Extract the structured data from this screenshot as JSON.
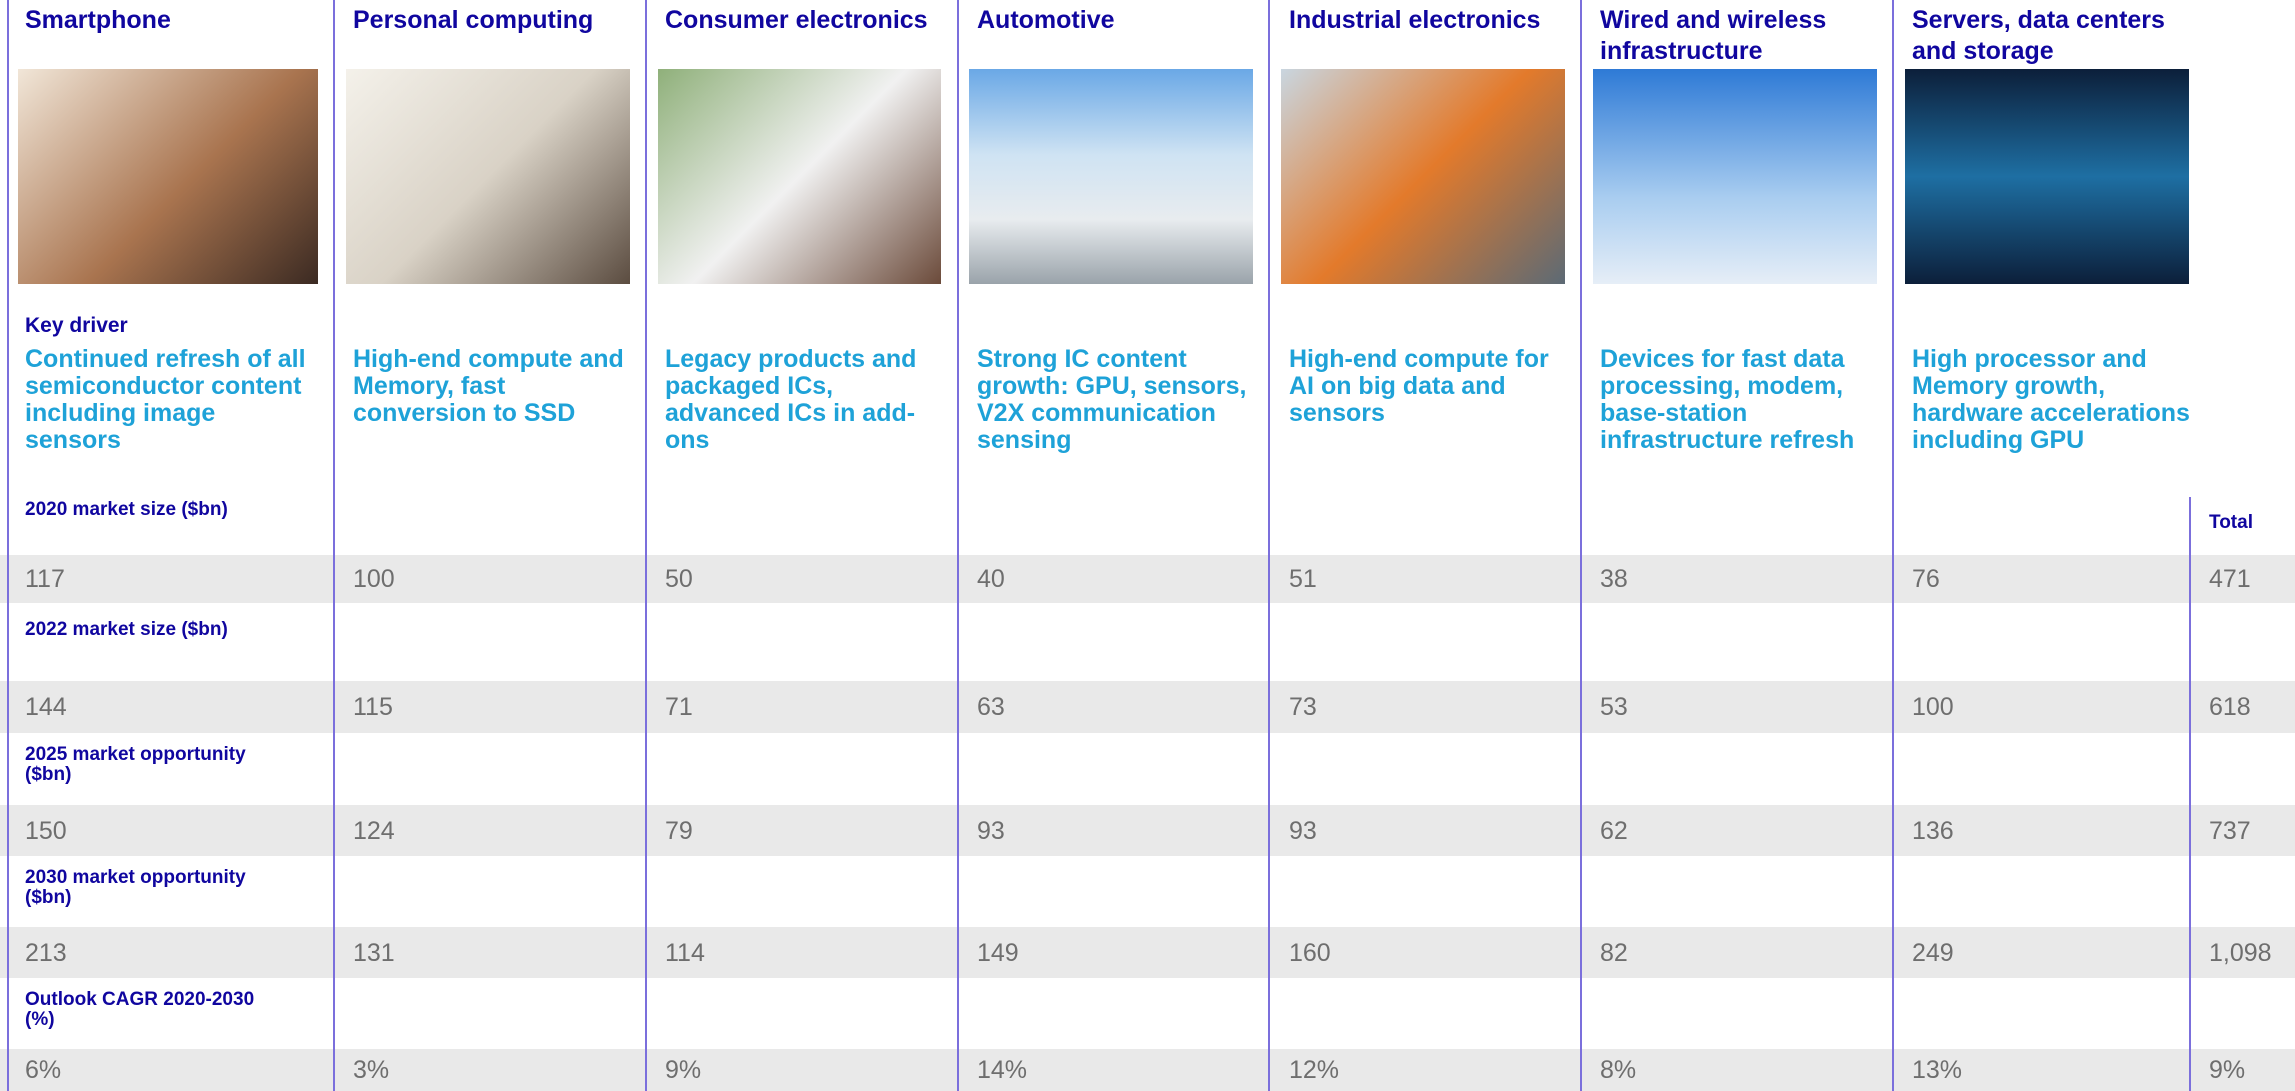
{
  "columns": [
    {
      "title": "Smartphone",
      "key_driver": "Continued refresh of all semiconductor content including image sensors"
    },
    {
      "title": "Personal computing",
      "key_driver": "High-end compute and Memory, fast conversion to SSD"
    },
    {
      "title": "Consumer electronics",
      "key_driver": "Legacy products and packaged ICs, advanced ICs in add-ons"
    },
    {
      "title": "Automotive",
      "key_driver": "Strong IC content growth: GPU, sensors, V2X communication sensing"
    },
    {
      "title": "Industrial electronics",
      "key_driver": "High-end compute for AI on big data and sensors"
    },
    {
      "title": "Wired and wireless infrastructure",
      "key_driver": "Devices for fast data processing, modem, base-station infrastructure refresh"
    },
    {
      "title": "Servers, data centers and storage",
      "key_driver": "High processor and Memory growth, hardware accelerations including GPU"
    }
  ],
  "key_driver_label": "Key driver",
  "total_label": "Total",
  "rows": [
    {
      "label": "2020 market size ($bn)",
      "values": [
        "117",
        "100",
        "50",
        "40",
        "51",
        "38",
        "76",
        "471"
      ]
    },
    {
      "label": "2022 market size ($bn)",
      "values": [
        "144",
        "115",
        "71",
        "63",
        "73",
        "53",
        "100",
        "618"
      ]
    },
    {
      "label": "2025 market opportunity ($bn)",
      "values": [
        "150",
        "124",
        "79",
        "93",
        "93",
        "62",
        "136",
        "737"
      ]
    },
    {
      "label": "2030 market opportunity ($bn)",
      "values": [
        "213",
        "131",
        "114",
        "149",
        "160",
        "82",
        "249",
        "1,098"
      ]
    },
    {
      "label": "Outlook CAGR 2020-2030 (%)",
      "values": [
        "6%",
        "3%",
        "9%",
        "14%",
        "12%",
        "8%",
        "13%",
        "9%"
      ]
    }
  ]
}
